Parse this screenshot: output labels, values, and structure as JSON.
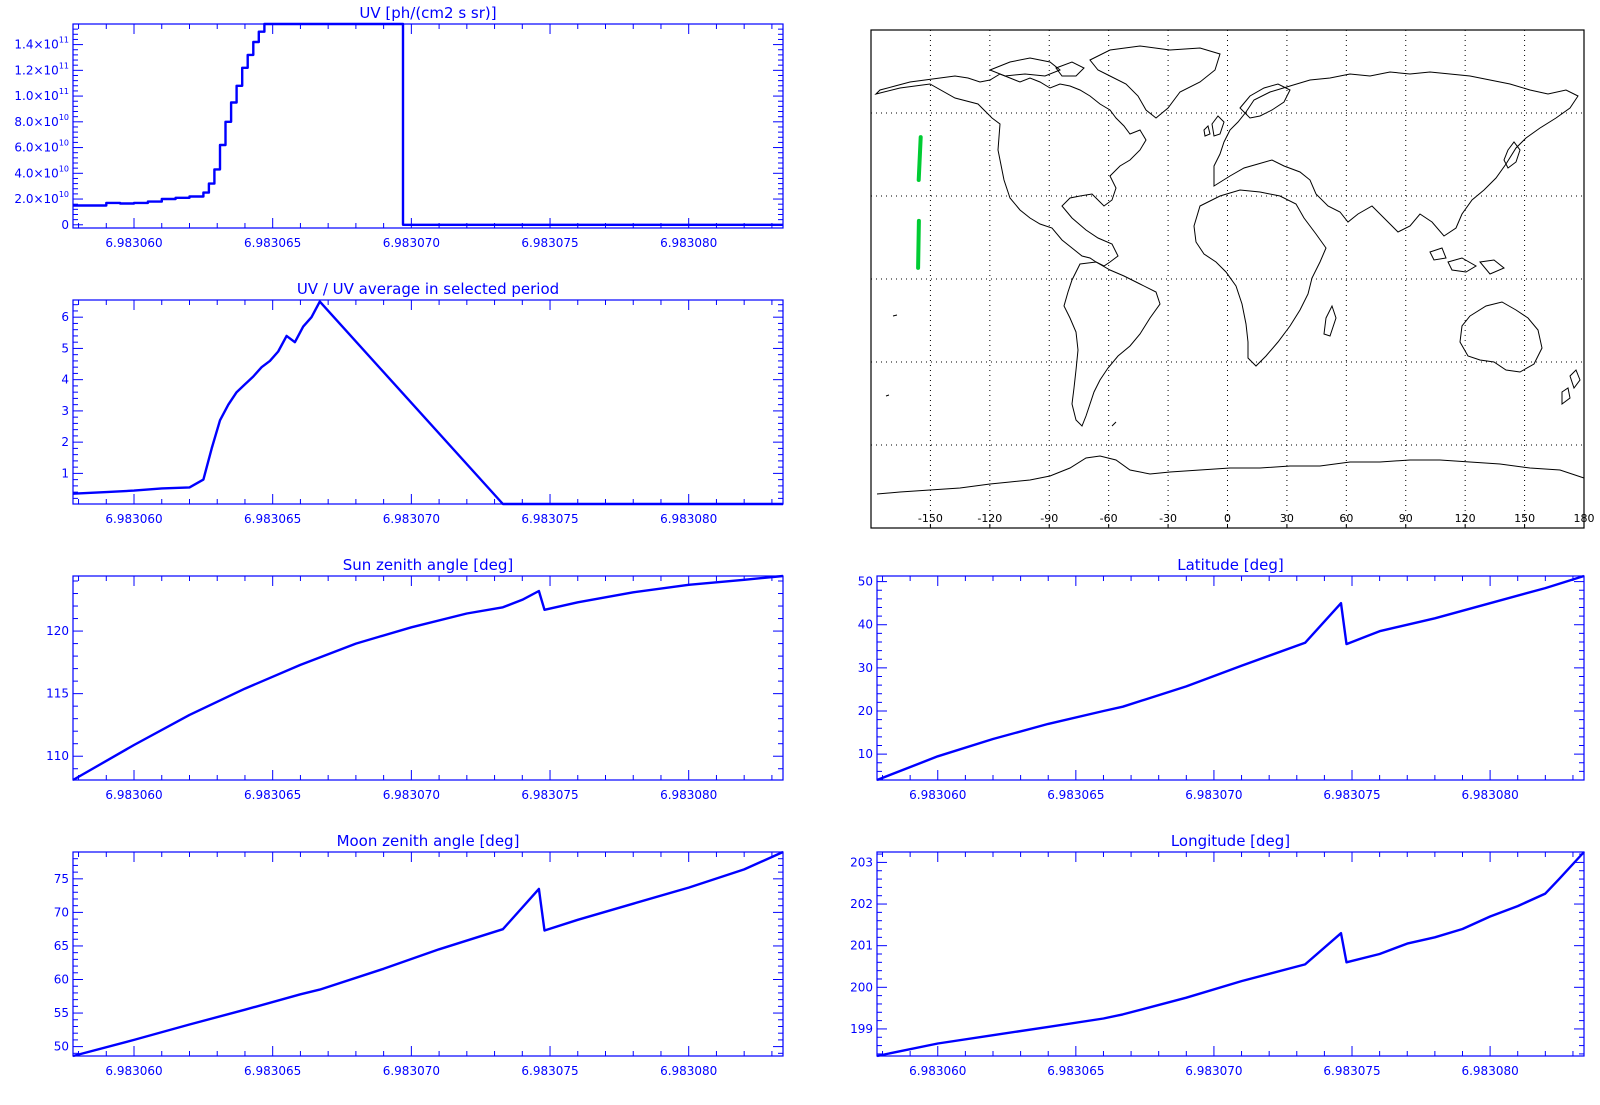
{
  "colors": {
    "axis": "#0000ff",
    "line": "#0000ff",
    "track": "#00cc33",
    "coast": "#000000",
    "grid": "#000000"
  },
  "chart_data": [
    {
      "id": "uv",
      "type": "line",
      "title": "UV [ph/(cm2 s sr)]",
      "xlim": [
        6.9830578,
        6.9830834
      ],
      "ylim": [
        -2500000000.0,
        156000000000.0
      ],
      "xticks": [
        6.98306,
        6.983065,
        6.98307,
        6.983075,
        6.98308
      ],
      "xticklabels": [
        "6.983060",
        "6.983065",
        "6.983070",
        "6.983075",
        "6.983080"
      ],
      "yticks": [
        0,
        20000000000.0,
        40000000000.0,
        60000000000.0,
        80000000000.0,
        100000000000.0,
        120000000000.0,
        140000000000.0
      ],
      "yticklabels": [
        {
          "mant": "0",
          "exp": ""
        },
        {
          "mant": "2.0×10",
          "exp": "10"
        },
        {
          "mant": "4.0×10",
          "exp": "10"
        },
        {
          "mant": "6.0×10",
          "exp": "10"
        },
        {
          "mant": "8.0×10",
          "exp": "10"
        },
        {
          "mant": "1.0×10",
          "exp": "11"
        },
        {
          "mant": "1.2×10",
          "exp": "11"
        },
        {
          "mant": "1.4×10",
          "exp": "11"
        }
      ],
      "step": true,
      "x": [
        6.9830578,
        6.9830585,
        6.983059,
        6.9830595,
        6.98306,
        6.9830605,
        6.983061,
        6.9830615,
        6.983062,
        6.9830625,
        6.9830627,
        6.9830629,
        6.9830631,
        6.9830633,
        6.9830635,
        6.9830637,
        6.9830639,
        6.9830641,
        6.9830643,
        6.9830645,
        6.9830647,
        6.9830697,
        6.9830697,
        6.9830697,
        6.9830834
      ],
      "y": [
        15000000000.0,
        15000000000.0,
        17000000000.0,
        16500000000.0,
        17000000000.0,
        18000000000.0,
        20000000000.0,
        21000000000.0,
        22000000000.0,
        25000000000.0,
        32000000000.0,
        43000000000.0,
        62000000000.0,
        80000000000.0,
        95000000000.0,
        108000000000.0,
        122000000000.0,
        132000000000.0,
        142000000000.0,
        150000000000.0,
        156000000000.0,
        156000000000.0,
        156000000000.0,
        0,
        0
      ]
    },
    {
      "id": "uvratio",
      "type": "line",
      "title": "UV / UV average in selected period",
      "xlim": [
        6.9830578,
        6.9830834
      ],
      "ylim": [
        0.02,
        6.55
      ],
      "xticks": [
        6.98306,
        6.983065,
        6.98307,
        6.983075,
        6.98308
      ],
      "xticklabels": [
        "6.983060",
        "6.983065",
        "6.983070",
        "6.983075",
        "6.983080"
      ],
      "yticks": [
        1,
        2,
        3,
        4,
        5,
        6
      ],
      "yticklabels": [
        "1",
        "2",
        "3",
        "4",
        "5",
        "6"
      ],
      "x": [
        6.9830578,
        6.983059,
        6.98306,
        6.983061,
        6.983062,
        6.9830625,
        6.9830628,
        6.9830631,
        6.9830634,
        6.9830637,
        6.983064,
        6.9830643,
        6.9830646,
        6.9830649,
        6.9830652,
        6.9830655,
        6.9830658,
        6.9830661,
        6.9830664,
        6.9830667,
        6.9830733,
        6.9830834
      ],
      "y": [
        0.35,
        0.4,
        0.45,
        0.52,
        0.55,
        0.8,
        1.8,
        2.7,
        3.2,
        3.6,
        3.85,
        4.1,
        4.4,
        4.6,
        4.9,
        5.4,
        5.2,
        5.7,
        6.0,
        6.5,
        0.02,
        0.02
      ]
    },
    {
      "id": "sunzen",
      "type": "line",
      "title": "Sun zenith angle [deg]",
      "xlim": [
        6.9830578,
        6.9830834
      ],
      "ylim": [
        108.1,
        124.4
      ],
      "xticks": [
        6.98306,
        6.983065,
        6.98307,
        6.983075,
        6.98308
      ],
      "xticklabels": [
        "6.983060",
        "6.983065",
        "6.983070",
        "6.983075",
        "6.983080"
      ],
      "yticks": [
        110,
        115,
        120
      ],
      "yticklabels": [
        "110",
        "115",
        "120"
      ],
      "x": [
        6.9830578,
        6.98306,
        6.983062,
        6.983064,
        6.983066,
        6.983068,
        6.98307,
        6.983072,
        6.9830733,
        6.983074,
        6.9830746,
        6.9830748,
        6.983076,
        6.983078,
        6.98308,
        6.983082,
        6.9830834
      ],
      "y": [
        108.1,
        110.9,
        113.3,
        115.4,
        117.3,
        119.0,
        120.3,
        121.4,
        121.9,
        122.5,
        123.2,
        121.7,
        122.3,
        123.1,
        123.7,
        124.1,
        124.4
      ]
    },
    {
      "id": "latitude",
      "type": "line",
      "title": "Latitude [deg]",
      "xlim": [
        6.9830578,
        6.9830834
      ],
      "ylim": [
        4.0,
        51.3
      ],
      "xticks": [
        6.98306,
        6.983065,
        6.98307,
        6.983075,
        6.98308
      ],
      "xticklabels": [
        "6.983060",
        "6.983065",
        "6.983070",
        "6.983075",
        "6.983080"
      ],
      "yticks": [
        10,
        20,
        30,
        40,
        50
      ],
      "yticklabels": [
        "10",
        "20",
        "30",
        "40",
        "50"
      ],
      "x": [
        6.9830578,
        6.98306,
        6.983062,
        6.983064,
        6.983066,
        6.9830667,
        6.983069,
        6.983071,
        6.9830733,
        6.9830746,
        6.9830748,
        6.983076,
        6.983078,
        6.98308,
        6.983082,
        6.9830834
      ],
      "y": [
        4.0,
        9.5,
        13.5,
        17.0,
        20.0,
        21.0,
        25.7,
        30.5,
        35.8,
        45.0,
        35.5,
        38.5,
        41.5,
        45.0,
        48.5,
        51.3
      ]
    },
    {
      "id": "moonzen",
      "type": "line",
      "title": "Moon zenith angle [deg]",
      "xlim": [
        6.9830578,
        6.9830834
      ],
      "ylim": [
        48.6,
        79.0
      ],
      "xticks": [
        6.98306,
        6.983065,
        6.98307,
        6.983075,
        6.98308
      ],
      "xticklabels": [
        "6.983060",
        "6.983065",
        "6.983070",
        "6.983075",
        "6.983080"
      ],
      "yticks": [
        50,
        55,
        60,
        65,
        70,
        75
      ],
      "yticklabels": [
        "50",
        "55",
        "60",
        "65",
        "70",
        "75"
      ],
      "x": [
        6.9830578,
        6.98306,
        6.983062,
        6.983064,
        6.983066,
        6.9830667,
        6.983069,
        6.983071,
        6.9830733,
        6.9830746,
        6.9830748,
        6.983076,
        6.983078,
        6.98308,
        6.983082,
        6.9830834
      ],
      "y": [
        48.6,
        51.0,
        53.3,
        55.5,
        57.8,
        58.5,
        61.6,
        64.5,
        67.5,
        73.5,
        67.3,
        68.9,
        71.3,
        73.7,
        76.4,
        79.0
      ]
    },
    {
      "id": "longitude",
      "type": "line",
      "title": "Longitude [deg]",
      "xlim": [
        6.9830578,
        6.9830834
      ],
      "ylim": [
        198.35,
        203.25
      ],
      "xticks": [
        6.98306,
        6.983065,
        6.98307,
        6.983075,
        6.98308
      ],
      "xticklabels": [
        "6.983060",
        "6.983065",
        "6.983070",
        "6.983075",
        "6.983080"
      ],
      "yticks": [
        199,
        200,
        201,
        202,
        203
      ],
      "yticklabels": [
        "199",
        "200",
        "201",
        "202",
        "203"
      ],
      "x": [
        6.9830578,
        6.98306,
        6.983062,
        6.983064,
        6.983066,
        6.9830667,
        6.983069,
        6.983071,
        6.9830733,
        6.9830746,
        6.9830748,
        6.983076,
        6.983077,
        6.983078,
        6.983079,
        6.98308,
        6.983081,
        6.983082,
        6.9830825,
        6.9830834
      ],
      "y": [
        198.35,
        198.65,
        198.85,
        199.05,
        199.25,
        199.35,
        199.75,
        200.15,
        200.55,
        201.3,
        200.6,
        200.8,
        201.05,
        201.2,
        201.4,
        201.7,
        201.95,
        202.25,
        202.6,
        203.25
      ]
    }
  ],
  "map": {
    "lon_range": [
      -180,
      180
    ],
    "lat_range": [
      -90,
      90
    ],
    "lon_ticks": [
      -150,
      -120,
      -90,
      -60,
      -30,
      0,
      30,
      60,
      90,
      120,
      150,
      180
    ],
    "lon_tick_labels": [
      "-150",
      "-120",
      "-90",
      "-60",
      "-30",
      "0",
      "30",
      "60",
      "90",
      "120",
      "150",
      "180"
    ],
    "lat_grid": [
      -60,
      -30,
      0,
      30,
      60
    ],
    "track": [
      {
        "lon": -156.2,
        "lat": 4.0
      },
      {
        "lon": -155.8,
        "lat": 21.0
      },
      {
        "lon": -155.9,
        "lat": 35.8
      },
      {
        "lon": -154.9,
        "lat": 51.3
      }
    ],
    "track_gaps_after": [
      1
    ]
  }
}
